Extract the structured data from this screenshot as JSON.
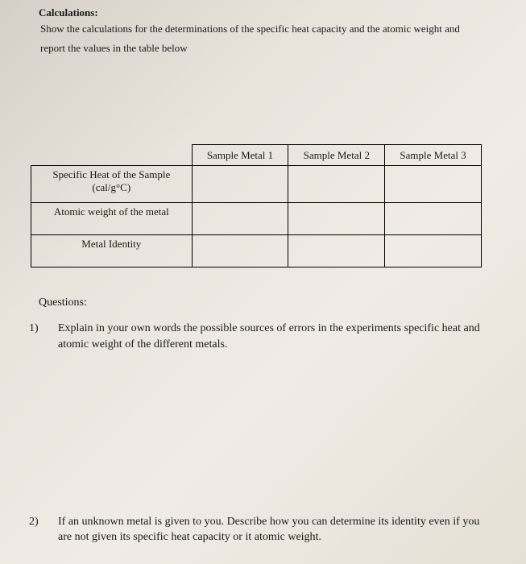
{
  "heading": "Calculations:",
  "instruction_line1": "Show the calculations for the determinations of the specific heat capacity and the atomic weight and",
  "instruction_line2": "report the values in the table below",
  "table": {
    "col_headers": [
      "Sample Metal 1",
      "Sample Metal 2",
      "Sample Metal 3"
    ],
    "row_headers": [
      {
        "line1": "Specific Heat of the Sample",
        "line2": "(cal/g°C)"
      },
      {
        "line1": "Atomic weight of the metal",
        "line2": ""
      },
      {
        "line1": "Metal Identity",
        "line2": ""
      }
    ]
  },
  "questions_heading": "Questions:",
  "questions": [
    {
      "num": "1)",
      "text": "Explain in your own words the possible sources of errors in the experiments specific heat and atomic weight of the different metals."
    },
    {
      "num": "2)",
      "text": "If an unknown metal is given to you. Describe how you can determine its identity even if you are not given its specific heat capacity or it atomic weight."
    }
  ]
}
